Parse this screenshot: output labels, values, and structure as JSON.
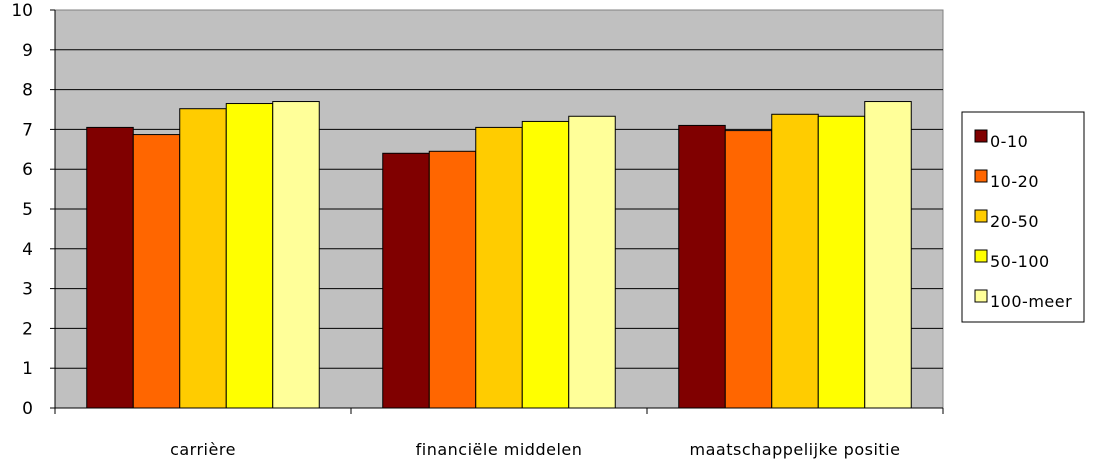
{
  "chart_data": {
    "type": "bar",
    "categories": [
      "carrière",
      "financiële middelen",
      "maatschappelijke positie"
    ],
    "series": [
      {
        "name": "0-10",
        "color": "#800000",
        "values": [
          7.05,
          6.4,
          7.1
        ]
      },
      {
        "name": "10-20",
        "color": "#FF6600",
        "values": [
          6.87,
          6.45,
          6.97
        ]
      },
      {
        "name": "20-50",
        "color": "#FFCC00",
        "values": [
          7.52,
          7.05,
          7.38
        ]
      },
      {
        "name": "50-100",
        "color": "#FFFF00",
        "values": [
          7.65,
          7.2,
          7.33
        ]
      },
      {
        "name": "100-meer",
        "color": "#FFFF99",
        "values": [
          7.7,
          7.33,
          7.7
        ]
      }
    ],
    "title": "",
    "xlabel": "",
    "ylabel": "",
    "ylim": [
      0,
      10
    ],
    "yticks": [
      "0",
      "1",
      "2",
      "3",
      "4",
      "5",
      "6",
      "7",
      "8",
      "9",
      "10"
    ],
    "grid": true,
    "plot_background": "#C0C0C0",
    "legend_position": "right"
  }
}
